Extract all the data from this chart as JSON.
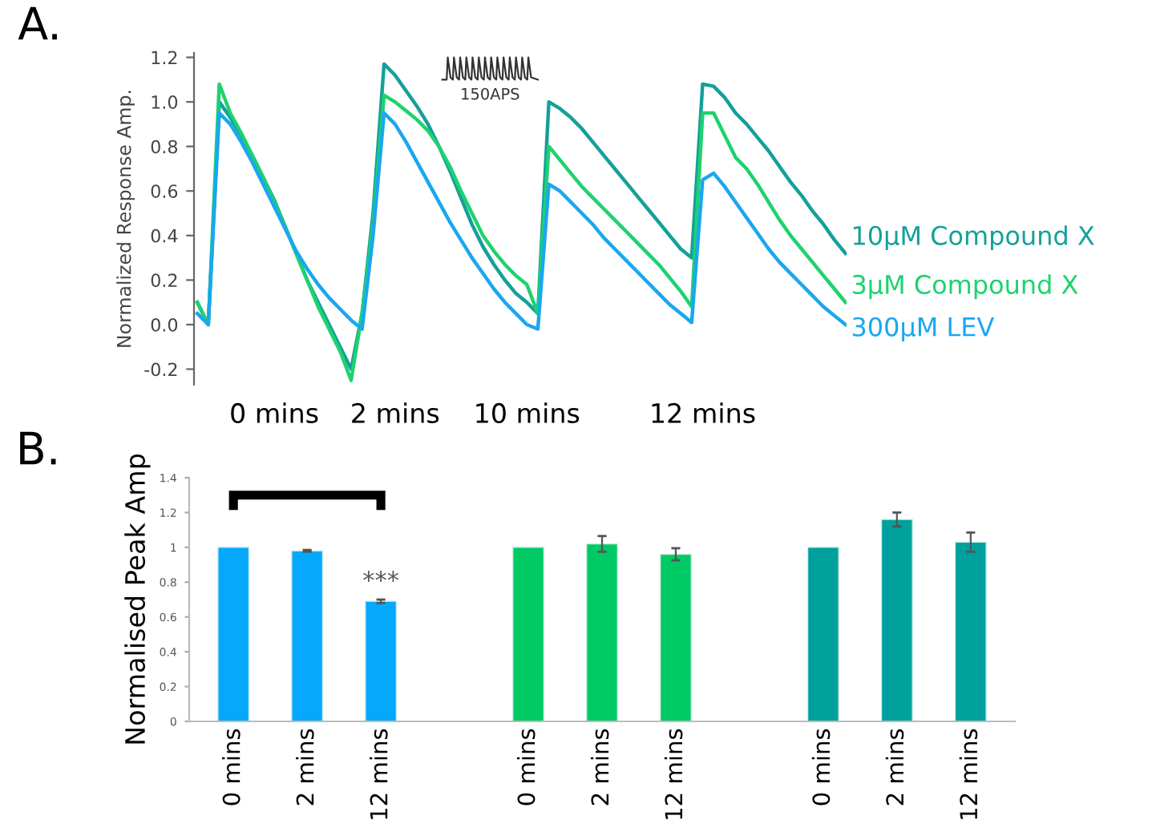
{
  "chart_data": [
    {
      "type": "line",
      "title": "A.",
      "ylabel": "Normalized Response Amp.",
      "categories": [
        null,
        null,
        null,
        null,
        null,
        null,
        null,
        "0 mins",
        null,
        null,
        null,
        null,
        null,
        null,
        null,
        null,
        null,
        null,
        "2 mins",
        null,
        null,
        null,
        null,
        null,
        null,
        null,
        null,
        null,
        null,
        null,
        "10 mins",
        null,
        null,
        null,
        null,
        null,
        null,
        null,
        null,
        null,
        null,
        null,
        null,
        null,
        null,
        null,
        "12 mins",
        null,
        null,
        null,
        null,
        null,
        null,
        null,
        null,
        null,
        null,
        null,
        null,
        null
      ],
      "series": [
        {
          "name": "10µM Compound X",
          "color": "#14a09a",
          "values": [
            0.1,
            0.0,
            1.0,
            0.93,
            0.85,
            0.76,
            0.66,
            0.56,
            0.44,
            0.32,
            0.2,
            0.1,
            0.0,
            -0.1,
            -0.2,
            0.05,
            0.5,
            1.17,
            1.12,
            1.05,
            0.98,
            0.9,
            0.8,
            0.69,
            0.57,
            0.45,
            0.35,
            0.27,
            0.2,
            0.14,
            0.1,
            0.05,
            1.0,
            0.97,
            0.93,
            0.88,
            0.82,
            0.76,
            0.7,
            0.64,
            0.58,
            0.52,
            0.46,
            0.4,
            0.34,
            0.3,
            1.08,
            1.07,
            1.02,
            0.95,
            0.9,
            0.84,
            0.78,
            0.71,
            0.64,
            0.58,
            0.51,
            0.45,
            0.38,
            0.32
          ]
        },
        {
          "name": "3µM Compound X",
          "color": "#1ed26e",
          "values": [
            0.1,
            0.0,
            1.08,
            0.95,
            0.86,
            0.76,
            0.66,
            0.55,
            0.44,
            0.32,
            0.2,
            0.08,
            -0.02,
            -0.12,
            -0.25,
            0.05,
            0.45,
            1.03,
            1.0,
            0.96,
            0.92,
            0.87,
            0.8,
            0.71,
            0.6,
            0.5,
            0.4,
            0.33,
            0.27,
            0.22,
            0.18,
            0.05,
            0.8,
            0.74,
            0.68,
            0.62,
            0.57,
            0.52,
            0.47,
            0.42,
            0.37,
            0.32,
            0.27,
            0.21,
            0.15,
            0.08,
            0.95,
            0.95,
            0.85,
            0.75,
            0.7,
            0.63,
            0.55,
            0.47,
            0.4,
            0.34,
            0.28,
            0.22,
            0.16,
            0.1
          ]
        },
        {
          "name": "300µM LEV",
          "color": "#1aa7f0",
          "values": [
            0.05,
            0.0,
            0.95,
            0.9,
            0.82,
            0.73,
            0.63,
            0.53,
            0.43,
            0.33,
            0.25,
            0.18,
            0.12,
            0.07,
            0.02,
            -0.02,
            0.4,
            0.95,
            0.9,
            0.82,
            0.73,
            0.64,
            0.55,
            0.46,
            0.38,
            0.3,
            0.23,
            0.16,
            0.1,
            0.05,
            0.0,
            -0.02,
            0.63,
            0.6,
            0.55,
            0.5,
            0.45,
            0.39,
            0.34,
            0.29,
            0.24,
            0.19,
            0.14,
            0.09,
            0.05,
            0.01,
            0.65,
            0.68,
            0.62,
            0.55,
            0.48,
            0.41,
            0.34,
            0.28,
            0.23,
            0.18,
            0.13,
            0.08,
            0.04,
            0.0
          ]
        }
      ],
      "ylim": [
        -0.27,
        1.22
      ],
      "yticks": [
        {
          "value": -0.2,
          "label": "-0.2"
        },
        {
          "value": 0,
          "label": "0.0"
        },
        0.2,
        0.4,
        0.6,
        0.8,
        {
          "value": 1,
          "label": "1.0"
        },
        1.2
      ],
      "annotations": [
        "150APS"
      ],
      "grid": false
    },
    {
      "type": "bar",
      "title": "B.",
      "ylabel": "Normalised Peak Amp",
      "categories": [
        "0 mins",
        "2 mins",
        "12 mins",
        null,
        "0 mins",
        "2 mins",
        "12 mins",
        null,
        "0 mins",
        "2 mins",
        "12 mins"
      ],
      "values": [
        1.0,
        0.98,
        0.69,
        null,
        1.0,
        1.02,
        0.96,
        null,
        1.0,
        1.16,
        1.03
      ],
      "errors": [
        null,
        0.005,
        0.01,
        null,
        null,
        0.045,
        0.035,
        null,
        null,
        0.04,
        0.055
      ],
      "colors": [
        "#04a8fc",
        "#04a8fc",
        "#04a8fc",
        null,
        "#00ca64",
        "#00ca64",
        "#00ca64",
        null,
        "#00a09c",
        "#00a09c",
        "#00a09c"
      ],
      "ylim": [
        0,
        1.4
      ],
      "yticks": [
        0,
        0.2,
        0.4,
        0.6,
        0.8,
        1,
        1.2,
        1.4
      ],
      "annotations": [
        "***"
      ],
      "grid": false
    }
  ]
}
